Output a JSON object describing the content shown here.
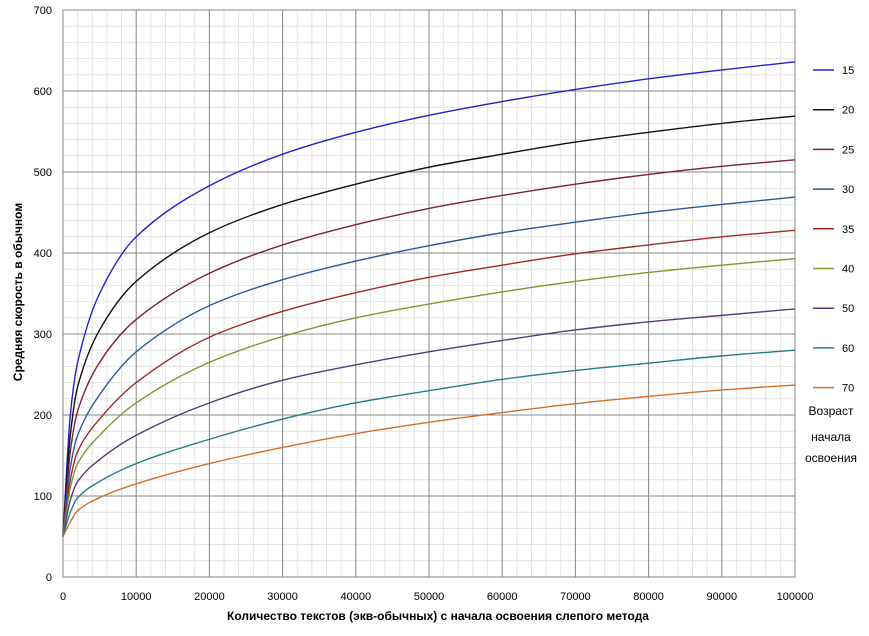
{
  "chart_data": {
    "type": "line",
    "xlabel": "Количество текстов (экв-обычных) с начала освоения слепого метода",
    "ylabel": "Средняя скорость в обычном",
    "legend_title": [
      "Возраст",
      "начала",
      "освоения"
    ],
    "legend_position": "right",
    "grid": true,
    "xlim": [
      0,
      100000
    ],
    "ylim": [
      0,
      700
    ],
    "x_ticks": [
      0,
      10000,
      20000,
      30000,
      40000,
      50000,
      60000,
      70000,
      80000,
      90000,
      100000
    ],
    "y_ticks": [
      0,
      100,
      200,
      300,
      400,
      500,
      600,
      700
    ],
    "x_tick_labels": [
      "0",
      "10000",
      "20000",
      "30000",
      "40000",
      "50000",
      "60000",
      "70000",
      "80000",
      "90000",
      "100000"
    ],
    "y_tick_labels": [
      "0",
      "100",
      "200",
      "300",
      "400",
      "500",
      "600",
      "700"
    ],
    "x": [
      0,
      1000,
      2000,
      5000,
      10000,
      20000,
      30000,
      40000,
      50000,
      60000,
      70000,
      80000,
      90000,
      100000
    ],
    "series": [
      {
        "name": "15",
        "color": "#2222cc",
        "values": [
          50,
          200,
          265,
          350,
          420,
          483,
          522,
          549,
          570,
          587,
          602,
          615,
          626,
          636
        ]
      },
      {
        "name": "20",
        "color": "#111111",
        "values": [
          50,
          175,
          235,
          305,
          365,
          425,
          460,
          485,
          506,
          522,
          537,
          549,
          560,
          569
        ]
      },
      {
        "name": "25",
        "color": "#7a2040",
        "values": [
          50,
          155,
          205,
          265,
          318,
          375,
          410,
          435,
          455,
          471,
          485,
          497,
          507,
          515
        ]
      },
      {
        "name": "30",
        "color": "#2a5a9a",
        "values": [
          50,
          135,
          175,
          225,
          278,
          335,
          367,
          390,
          409,
          425,
          438,
          450,
          460,
          469
        ]
      },
      {
        "name": "35",
        "color": "#a02a2a",
        "values": [
          50,
          120,
          155,
          195,
          240,
          296,
          328,
          351,
          370,
          385,
          399,
          410,
          420,
          428
        ]
      },
      {
        "name": "40",
        "color": "#7a9a30",
        "values": [
          50,
          110,
          140,
          175,
          215,
          265,
          297,
          320,
          337,
          352,
          365,
          376,
          385,
          393
        ]
      },
      {
        "name": "50",
        "color": "#5a3a7a",
        "values": [
          50,
          95,
          118,
          145,
          175,
          215,
          243,
          262,
          278,
          292,
          305,
          315,
          323,
          331
        ]
      },
      {
        "name": "60",
        "color": "#2a7a8a",
        "values": [
          50,
          80,
          98,
          118,
          140,
          170,
          195,
          215,
          230,
          244,
          255,
          264,
          273,
          280
        ]
      },
      {
        "name": "70",
        "color": "#d0702a",
        "values": [
          50,
          68,
          82,
          98,
          115,
          140,
          160,
          177,
          191,
          203,
          214,
          223,
          231,
          237
        ]
      }
    ]
  }
}
